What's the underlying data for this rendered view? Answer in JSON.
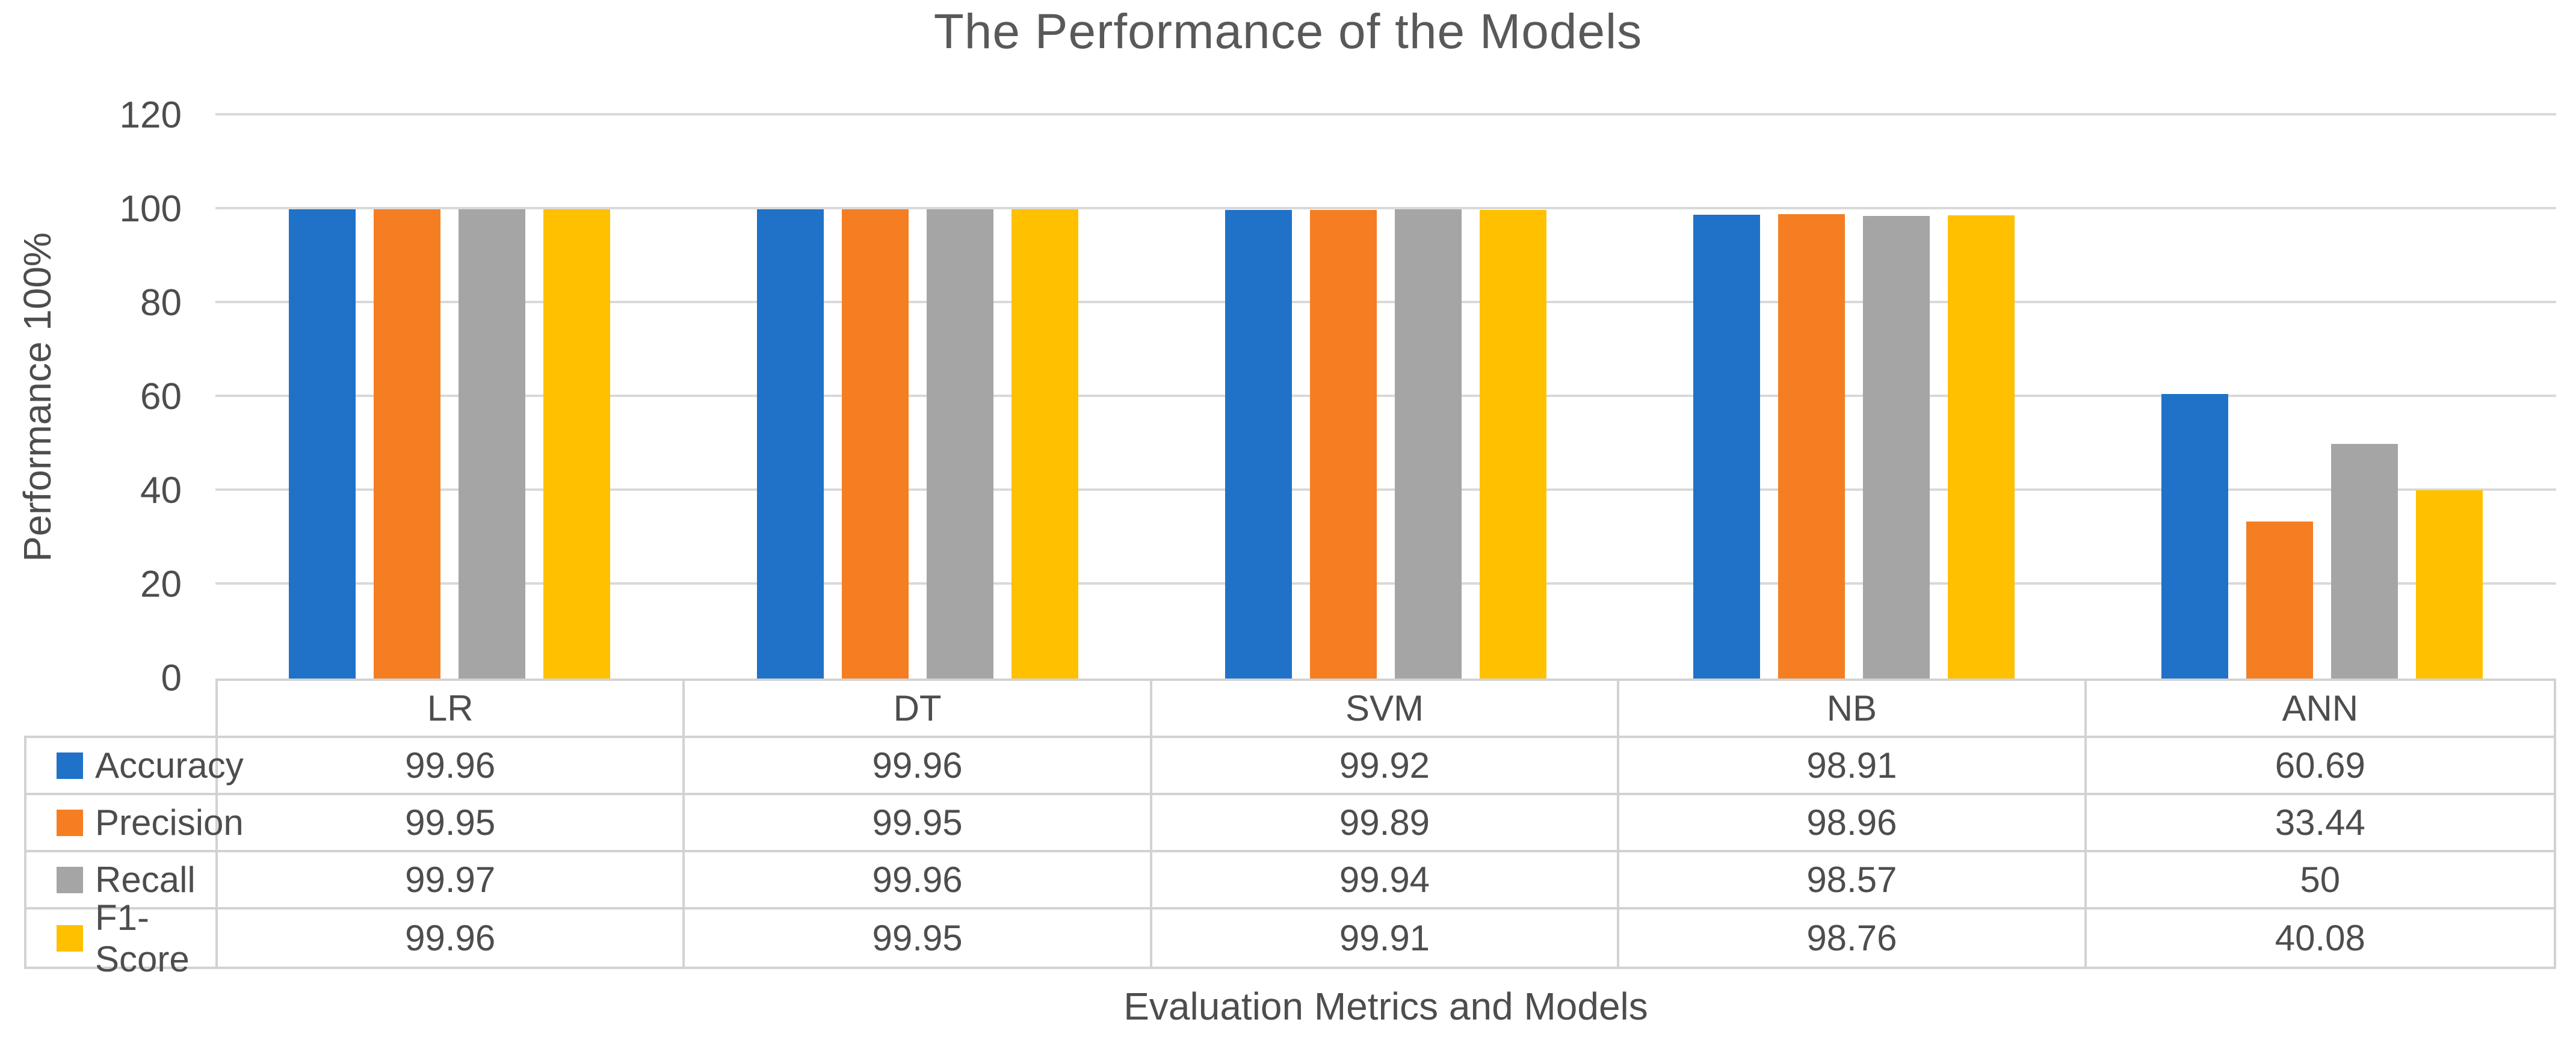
{
  "chart": {
    "title": "The Performance of the Models",
    "y_axis_label": "Performance 100%",
    "x_axis_label": "Evaluation Metrics and Models"
  },
  "chart_data": {
    "type": "bar",
    "title": "The Performance of the Models",
    "xlabel": "Evaluation Metrics and Models",
    "ylabel": "Performance 100%",
    "categories": [
      "LR",
      "DT",
      "SVM",
      "NB",
      "ANN"
    ],
    "series": [
      {
        "name": "Accuracy",
        "color": "#1F72C8",
        "values": [
          99.96,
          99.96,
          99.92,
          98.91,
          60.69
        ]
      },
      {
        "name": "Precision",
        "color": "#F57E22",
        "values": [
          99.95,
          99.95,
          99.89,
          98.96,
          33.44
        ]
      },
      {
        "name": "Recall",
        "color": "#A5A5A5",
        "values": [
          99.97,
          99.96,
          99.94,
          98.57,
          50
        ]
      },
      {
        "name": "F1-Score",
        "color": "#FFC000",
        "values": [
          99.96,
          99.95,
          99.91,
          98.76,
          40.08
        ]
      }
    ],
    "ylim": [
      0,
      120
    ],
    "yticks": [
      0,
      20,
      40,
      60,
      80,
      100,
      120
    ],
    "grid": true,
    "legend_position": "table-left",
    "data_table_shown": true
  },
  "colors": {
    "grid": "#D9D9D9",
    "table_border": "#D2D2D2",
    "title_text": "#595959",
    "body_text": "#4D4D4D",
    "background": "#FFFFFF"
  }
}
